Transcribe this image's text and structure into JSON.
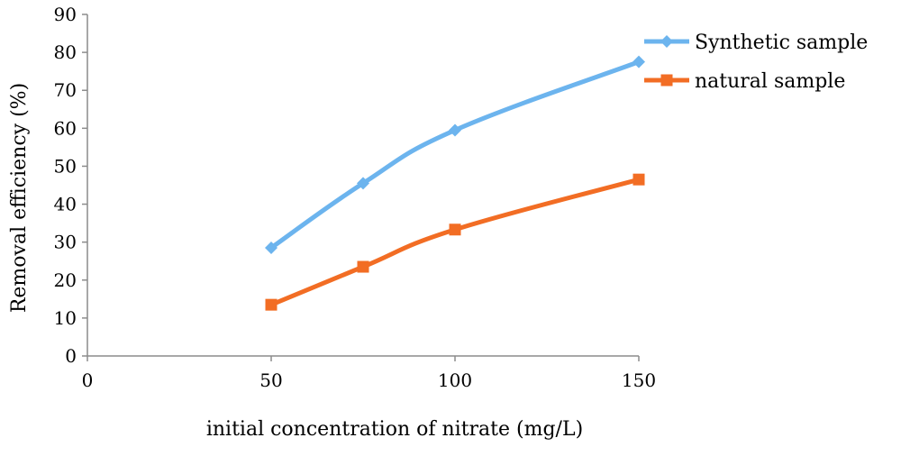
{
  "chart_data": {
    "type": "line",
    "x": [
      50,
      75,
      100,
      150
    ],
    "series": [
      {
        "name": "Synthetic sample",
        "values": [
          28.5,
          45.5,
          59.5,
          77.5
        ],
        "color": "#6cb4ee",
        "marker": "diamond"
      },
      {
        "name": "natural sample",
        "values": [
          13.5,
          23.5,
          33.3,
          46.5
        ],
        "color": "#f26d24",
        "marker": "square"
      }
    ],
    "xlabel": "initial concentration of nitrate (mg/L)",
    "ylabel": "Removal efficiency (%)",
    "xlim": [
      0,
      150
    ],
    "ylim": [
      0,
      90
    ],
    "xticks": [
      "0",
      "50",
      "100",
      "150"
    ],
    "yticks": [
      "0",
      "10",
      "20",
      "30",
      "40",
      "50",
      "60",
      "70",
      "80",
      "90"
    ],
    "grid": false,
    "legend_position": "top-right"
  }
}
